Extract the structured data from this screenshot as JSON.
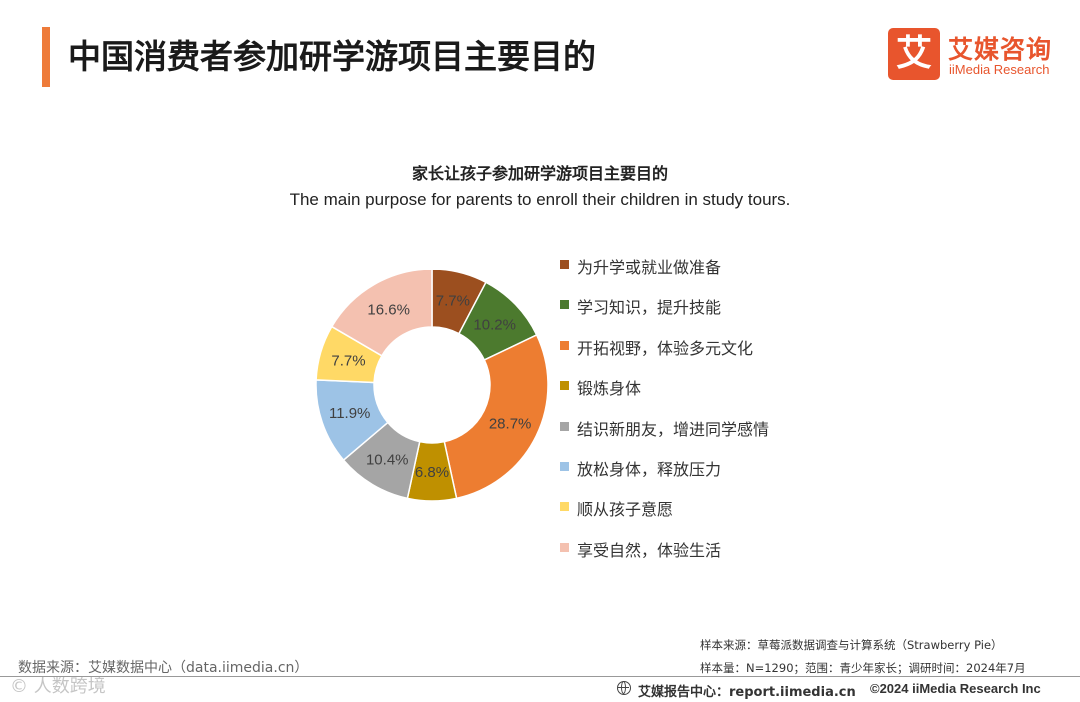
{
  "header": {
    "title": "中国消费者参加研学游项目主要目的",
    "brand_name": "艾媒咨询",
    "brand_char": "艾",
    "brand_sub": "iiMedia Research"
  },
  "chart_data": {
    "type": "pie",
    "donut": true,
    "title": "家长让孩子参加研学游项目主要目的",
    "subtitle": "The main purpose for parents to enroll their children in study tours.",
    "unit": "%",
    "legend_position": "right",
    "categories": [
      "为升学或就业做准备",
      "学习知识，提升技能",
      "开拓视野，体验多元文化",
      "锻炼身体",
      "结识新朋友，增进同学感情",
      "放松身体，释放压力",
      "顺从孩子意愿",
      "享受自然，体验生活"
    ],
    "values": [
      7.7,
      10.2,
      28.7,
      6.8,
      10.4,
      11.9,
      7.7,
      16.6
    ],
    "labels": [
      "7.7%",
      "10.2%",
      "28.7%",
      "6.8%",
      "10.4%",
      "11.9%",
      "7.7%",
      "16.6%"
    ],
    "colors": [
      "#9c4f1f",
      "#4c7a2e",
      "#ed7d31",
      "#bf9000",
      "#a5a5a5",
      "#9dc3e6",
      "#ffd966",
      "#f4c1b0"
    ]
  },
  "footer": {
    "source": "数据来源：艾媒数据中心（data.iimedia.cn）",
    "sample_source": "样本来源：草莓派数据调查与计算系统（Strawberry Pie）",
    "sample_size": "样本量：N=1290；范围：青少年家长；调研时间：2024年7月",
    "report_center": "艾媒报告中心：report.iimedia.cn",
    "copyright": "©2024  iiMedia Research  Inc",
    "watermark": "©  人数跨境"
  },
  "icons": {
    "globe": "globe-icon"
  }
}
